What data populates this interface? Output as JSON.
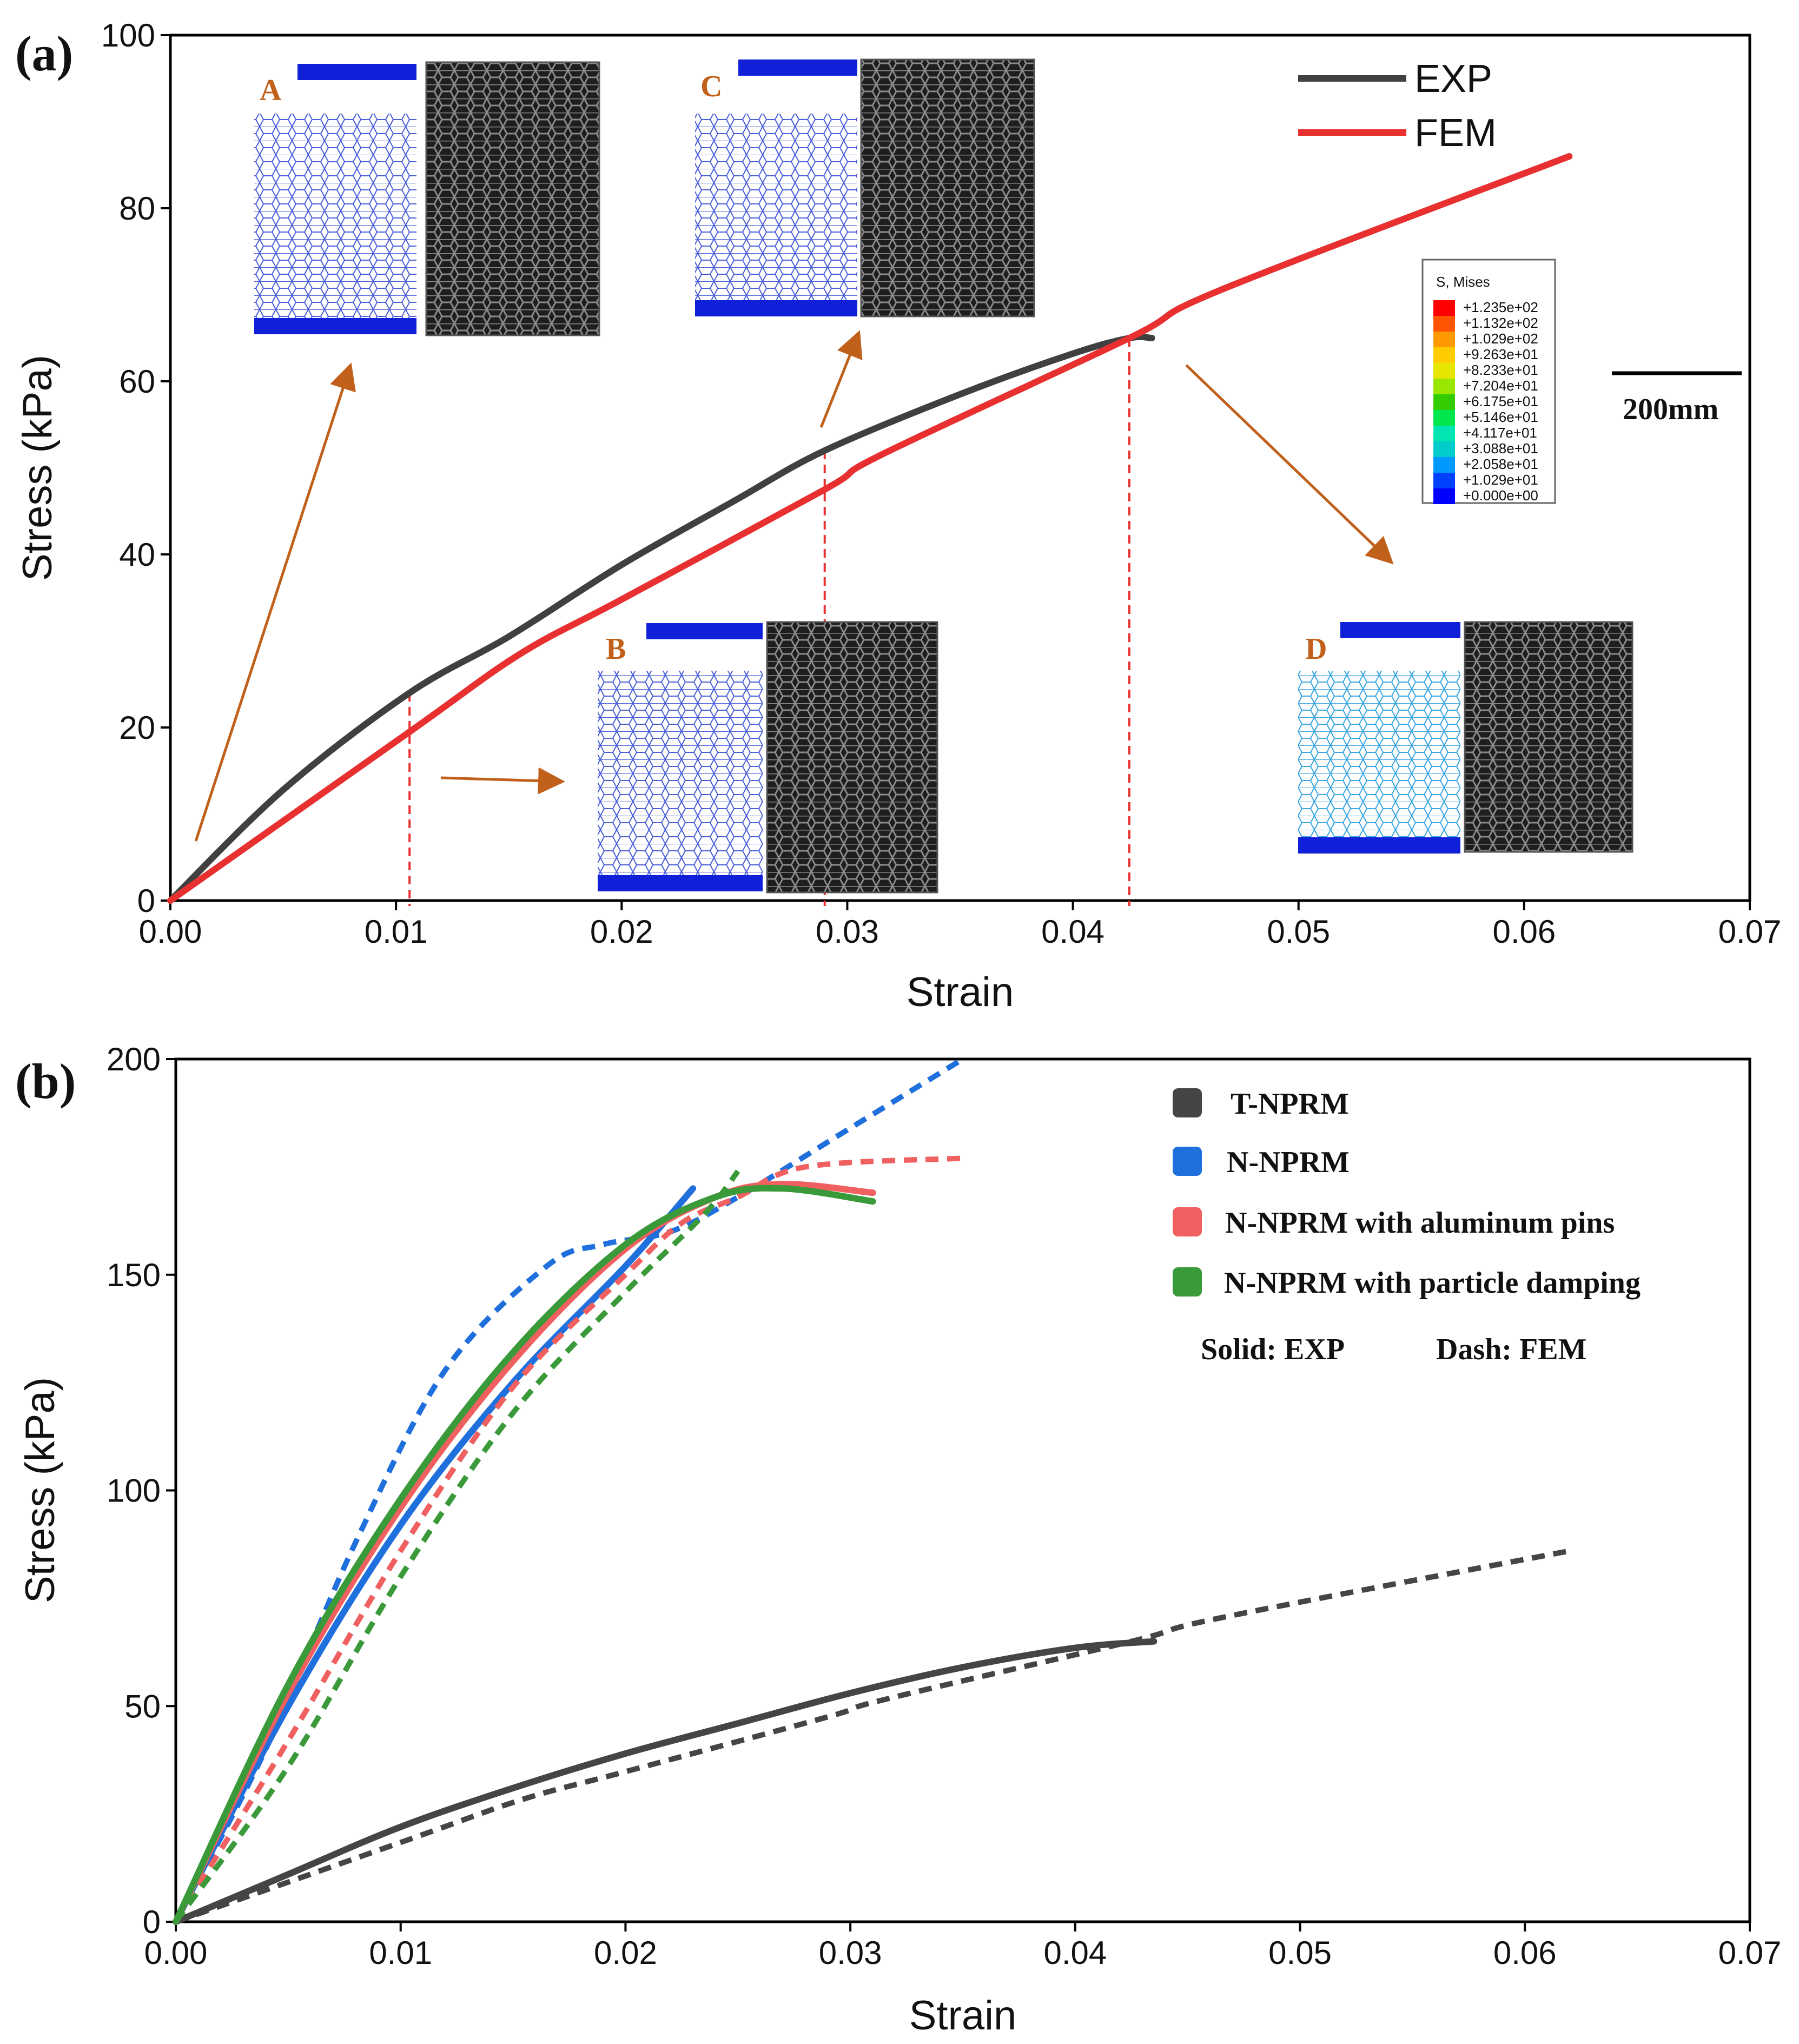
{
  "chart_data": [
    {
      "type": "line",
      "panel_label": "(a)",
      "xlabel": "Strain",
      "ylabel": "Stress (kPa)",
      "xlim": [
        0,
        0.07
      ],
      "ylim": [
        0,
        100
      ],
      "x_ticks": [
        "0.00",
        "0.01",
        "0.02",
        "0.03",
        "0.04",
        "0.05",
        "0.06",
        "0.07"
      ],
      "y_ticks": [
        "0",
        "20",
        "40",
        "60",
        "80",
        "100"
      ],
      "series": [
        {
          "name": "EXP",
          "color": "#404040",
          "style": "solid",
          "points": [
            [
              0,
              0
            ],
            [
              0.005,
              12.8
            ],
            [
              0.0106,
              24
            ],
            [
              0.015,
              30.5
            ],
            [
              0.02,
              38.8
            ],
            [
              0.025,
              46.2
            ],
            [
              0.029,
              52
            ],
            [
              0.035,
              58.5
            ],
            [
              0.04,
              63.2
            ],
            [
              0.0425,
              65
            ],
            [
              0.0435,
              65
            ]
          ]
        },
        {
          "name": "FEM",
          "color": "#e83030",
          "style": "solid",
          "points": [
            [
              0,
              0
            ],
            [
              0.0106,
              19.5
            ],
            [
              0.0155,
              28.5
            ],
            [
              0.02,
              34.8
            ],
            [
              0.029,
              47.5
            ],
            [
              0.0315,
              51.5
            ],
            [
              0.0425,
              65
            ],
            [
              0.0465,
              70.5
            ],
            [
              0.062,
              86
            ]
          ]
        }
      ],
      "markers": [
        {
          "x": 0.0106,
          "y": 24
        },
        {
          "x": 0.029,
          "y": 52
        },
        {
          "x": 0.0425,
          "y": 65
        }
      ],
      "insets": [
        "A",
        "B",
        "C",
        "D"
      ],
      "colorbar": {
        "title": "S, Mises",
        "levels": [
          "+1.235e+02",
          "+1.132e+02",
          "+1.029e+02",
          "+9.263e+01",
          "+8.233e+01",
          "+7.204e+01",
          "+6.175e+01",
          "+5.146e+01",
          "+4.117e+01",
          "+3.088e+01",
          "+2.058e+01",
          "+1.029e+01",
          "+0.000e+00"
        ],
        "colors": [
          "#ff0000",
          "#ff5500",
          "#ff9900",
          "#ffcc00",
          "#e6e600",
          "#99e600",
          "#33cc00",
          "#00e64d",
          "#00e6b3",
          "#00cccc",
          "#0099ff",
          "#0040ff",
          "#0000ff"
        ]
      },
      "scale_bar": "200mm"
    },
    {
      "type": "line",
      "panel_label": "(b)",
      "xlabel": "Strain",
      "ylabel": "Stress (kPa)",
      "xlim": [
        0,
        0.07
      ],
      "ylim": [
        0,
        200
      ],
      "x_ticks": [
        "0.00",
        "0.01",
        "0.02",
        "0.03",
        "0.04",
        "0.05",
        "0.06",
        "0.07"
      ],
      "y_ticks": [
        "0",
        "50",
        "100",
        "150",
        "200"
      ],
      "legend_note_solid": "Solid: EXP",
      "legend_note_dash": "Dash: FEM",
      "series": [
        {
          "name": "T-NPRM",
          "kind": "EXP",
          "color": "#454545",
          "style": "solid",
          "points": [
            [
              0,
              0
            ],
            [
              0.005,
              11
            ],
            [
              0.01,
              22
            ],
            [
              0.015,
              31
            ],
            [
              0.02,
              39
            ],
            [
              0.025,
              46
            ],
            [
              0.03,
              53
            ],
            [
              0.035,
              59
            ],
            [
              0.04,
              63.5
            ],
            [
              0.0435,
              65
            ]
          ]
        },
        {
          "name": "T-NPRM",
          "kind": "FEM",
          "color": "#454545",
          "style": "dashed",
          "points": [
            [
              0,
              0
            ],
            [
              0.0106,
              19.5
            ],
            [
              0.0155,
              28.5
            ],
            [
              0.02,
              34.8
            ],
            [
              0.029,
              47.5
            ],
            [
              0.0315,
              51.5
            ],
            [
              0.0425,
              65
            ],
            [
              0.0465,
              70.5
            ],
            [
              0.062,
              86
            ]
          ]
        },
        {
          "name": "N-NPRM",
          "kind": "EXP",
          "color": "#1f6fdc",
          "style": "solid",
          "points": [
            [
              0,
              0
            ],
            [
              0.005,
              50
            ],
            [
              0.01,
              92
            ],
            [
              0.015,
              125
            ],
            [
              0.02,
              152
            ],
            [
              0.023,
              170
            ]
          ]
        },
        {
          "name": "N-NPRM",
          "kind": "FEM",
          "color": "#1f6fdc",
          "style": "dashed",
          "points": [
            [
              0,
              0
            ],
            [
              0.004,
              40
            ],
            [
              0.008,
              88
            ],
            [
              0.012,
              128
            ],
            [
              0.0165,
              152
            ],
            [
              0.019,
              157
            ],
            [
              0.022,
              160
            ],
            [
              0.025,
              168
            ],
            [
              0.03,
              184
            ],
            [
              0.035,
              200
            ]
          ]
        },
        {
          "name": "N-NPRM with aluminum pins",
          "kind": "EXP",
          "color": "#f06060",
          "style": "solid",
          "points": [
            [
              0,
              0
            ],
            [
              0.005,
              53
            ],
            [
              0.01,
              96
            ],
            [
              0.015,
              130
            ],
            [
              0.02,
              156
            ],
            [
              0.024,
              168
            ],
            [
              0.027,
              171
            ],
            [
              0.031,
              169
            ]
          ]
        },
        {
          "name": "N-NPRM with aluminum pins",
          "kind": "FEM",
          "color": "#f06060",
          "style": "dashed",
          "points": [
            [
              0,
              0
            ],
            [
              0.005,
              42
            ],
            [
              0.01,
              86
            ],
            [
              0.015,
              124
            ],
            [
              0.02,
              150
            ],
            [
              0.0225,
              162
            ],
            [
              0.025,
              168
            ],
            [
              0.028,
              175
            ],
            [
              0.035,
              177
            ]
          ]
        },
        {
          "name": "N-NPRM with particle damping",
          "kind": "EXP",
          "color": "#3a9a3a",
          "style": "solid",
          "points": [
            [
              0,
              0
            ],
            [
              0.005,
              55
            ],
            [
              0.01,
              98
            ],
            [
              0.015,
              132
            ],
            [
              0.02,
              157
            ],
            [
              0.024,
              168
            ],
            [
              0.027,
              170
            ],
            [
              0.031,
              167
            ]
          ]
        },
        {
          "name": "N-NPRM with particle damping",
          "kind": "FEM",
          "color": "#3a9a3a",
          "style": "dashed",
          "points": [
            [
              0,
              0
            ],
            [
              0.005,
              36
            ],
            [
              0.01,
              80
            ],
            [
              0.015,
              118
            ],
            [
              0.02,
              146
            ],
            [
              0.0235,
              164
            ],
            [
              0.025,
              174
            ]
          ]
        }
      ],
      "legend": [
        {
          "label": "T-NPRM",
          "color": "#454545"
        },
        {
          "label": "N-NPRM",
          "color": "#1f6fdc"
        },
        {
          "label": "N-NPRM with aluminum pins",
          "color": "#f06060"
        },
        {
          "label": "N-NPRM with particle damping",
          "color": "#3a9a3a"
        }
      ]
    }
  ]
}
